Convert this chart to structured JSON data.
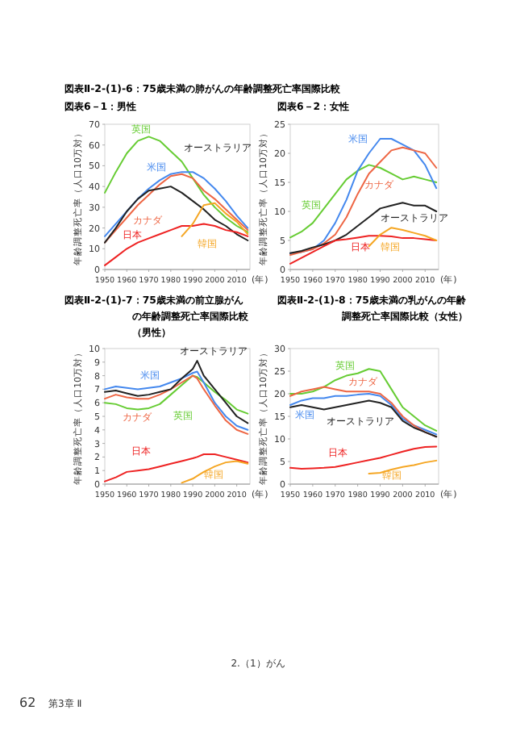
{
  "chart_data": [
    {
      "type": "line",
      "title": "図表Ⅱ-2-(1)-6：75歳未満の肺がんの年齢調整死亡率国際比較",
      "subtitle": "図表6－1：男性",
      "xlabel": "(年)",
      "ylabel": "年齢調整死亡率（人口10万対）",
      "xlim": [
        1950,
        2016
      ],
      "xticks": [
        1950,
        1960,
        1970,
        1980,
        1990,
        2000,
        2010
      ],
      "ylim": [
        0,
        70
      ],
      "yticks": [
        0,
        10,
        20,
        30,
        40,
        50,
        60,
        70
      ],
      "x": [
        1950,
        1955,
        1960,
        1965,
        1970,
        1975,
        1980,
        1985,
        1990,
        1995,
        2000,
        2005,
        2010,
        2015
      ],
      "series": [
        {
          "name": "英国",
          "color": "#66cc33",
          "values": [
            37,
            47,
            56,
            62,
            64,
            62,
            57,
            52,
            44,
            36,
            30,
            25,
            21,
            18
          ]
        },
        {
          "name": "米国",
          "color": "#4488ee",
          "values": [
            16,
            22,
            28,
            34,
            39,
            43,
            46,
            47,
            47,
            44,
            39,
            33,
            26,
            20
          ]
        },
        {
          "name": "カナダ",
          "color": "#ee6644",
          "values": [
            13,
            19,
            25,
            31,
            36,
            41,
            45,
            46,
            44,
            38,
            34,
            29,
            24,
            19
          ]
        },
        {
          "name": "オーストラリア",
          "color": "#222222",
          "values": [
            13,
            20,
            28,
            34,
            38,
            39,
            40,
            37,
            33,
            29,
            24,
            21,
            17,
            14
          ]
        },
        {
          "name": "日本",
          "color": "#ee2222",
          "values": [
            2,
            6,
            10,
            13,
            15,
            17,
            19,
            21,
            21,
            22,
            21,
            19,
            18,
            16
          ]
        },
        {
          "name": "韓国",
          "color": "#f5a623",
          "values": [
            null,
            null,
            null,
            null,
            null,
            null,
            null,
            16,
            22,
            31,
            32,
            27,
            23,
            17
          ]
        }
      ]
    },
    {
      "type": "line",
      "title": "図表6－2：女性",
      "xlabel": "(年)",
      "ylabel": "年齢調整死亡率（人口10万対）",
      "xlim": [
        1950,
        2016
      ],
      "xticks": [
        1950,
        1960,
        1970,
        1980,
        1990,
        2000,
        2010
      ],
      "ylim": [
        0,
        25
      ],
      "yticks": [
        0,
        5,
        10,
        15,
        20,
        25
      ],
      "x": [
        1950,
        1955,
        1960,
        1965,
        1970,
        1975,
        1980,
        1985,
        1990,
        1995,
        2000,
        2005,
        2010,
        2015
      ],
      "series": [
        {
          "name": "英国",
          "color": "#66cc33",
          "values": [
            5.5,
            6.5,
            8,
            10.5,
            13,
            15.5,
            17,
            18,
            17.5,
            16.5,
            15.5,
            16,
            15.5,
            15
          ]
        },
        {
          "name": "米国",
          "color": "#4488ee",
          "values": [
            2.8,
            3,
            3.5,
            5,
            8,
            12,
            17,
            20,
            22.5,
            22.5,
            21.5,
            20.5,
            18,
            14
          ]
        },
        {
          "name": "カナダ",
          "color": "#ee6644",
          "values": [
            2.5,
            3,
            3.5,
            4.5,
            6,
            9,
            13,
            16.5,
            18.5,
            20.5,
            21,
            20.5,
            20,
            17.5
          ]
        },
        {
          "name": "オーストラリア",
          "color": "#222222",
          "values": [
            2.8,
            3.2,
            3.8,
            4.3,
            5,
            6,
            7.5,
            9,
            10.5,
            11,
            11.5,
            11,
            11,
            10
          ]
        },
        {
          "name": "日本",
          "color": "#ee2222",
          "values": [
            1,
            2,
            3,
            4,
            5,
            5.2,
            5.5,
            5.8,
            5.8,
            5.7,
            5.4,
            5.4,
            5.2,
            5
          ]
        },
        {
          "name": "韓国",
          "color": "#f5a623",
          "values": [
            null,
            null,
            null,
            null,
            null,
            null,
            null,
            4,
            6,
            7.2,
            6.8,
            6.3,
            5.8,
            5
          ]
        }
      ]
    },
    {
      "type": "line",
      "title": "図表Ⅱ-2-(1)-7：75歳未満の前立腺がんの年齢調整死亡率国際比較（男性）",
      "xlabel": "(年)",
      "ylabel": "年齢調整死亡率（人口10万対）",
      "xlim": [
        1950,
        2016
      ],
      "xticks": [
        1950,
        1960,
        1970,
        1980,
        1990,
        2000,
        2010
      ],
      "ylim": [
        0,
        10
      ],
      "yticks": [
        0,
        1,
        2,
        3,
        4,
        5,
        6,
        7,
        8,
        9,
        10
      ],
      "x": [
        1950,
        1955,
        1960,
        1965,
        1970,
        1975,
        1980,
        1985,
        1990,
        1992,
        1995,
        2000,
        2005,
        2010,
        2015
      ],
      "series": [
        {
          "name": "英国",
          "color": "#66cc33",
          "values": [
            6,
            5.9,
            5.6,
            5.5,
            5.6,
            5.9,
            6.6,
            7.3,
            8,
            7.9,
            7.5,
            6.8,
            6.2,
            5.5,
            5.2
          ]
        },
        {
          "name": "米国",
          "color": "#4488ee",
          "values": [
            7,
            7.2,
            7.1,
            7,
            7.1,
            7.2,
            7.5,
            7.8,
            8.2,
            8.3,
            7.5,
            6,
            5,
            4.3,
            4
          ]
        },
        {
          "name": "カナダ",
          "color": "#ee6644",
          "values": [
            6.3,
            6.6,
            6.4,
            6.3,
            6.3,
            6.6,
            7,
            7.5,
            8,
            7.8,
            7,
            5.8,
            4.7,
            4,
            3.7
          ]
        },
        {
          "name": "オーストラリア",
          "color": "#222222",
          "values": [
            6.8,
            6.9,
            6.7,
            6.5,
            6.6,
            6.8,
            7,
            7.8,
            8.5,
            9.1,
            8,
            7,
            6,
            5,
            4.5
          ]
        },
        {
          "name": "日本",
          "color": "#ee2222",
          "values": [
            0.2,
            0.5,
            0.9,
            1,
            1.1,
            1.3,
            1.5,
            1.7,
            1.9,
            2,
            2.2,
            2.2,
            2,
            1.8,
            1.6
          ]
        },
        {
          "name": "韓国",
          "color": "#f5a623",
          "values": [
            null,
            null,
            null,
            null,
            null,
            null,
            null,
            0.1,
            0.4,
            0.6,
            0.9,
            1.3,
            1.6,
            1.7,
            1.5
          ]
        }
      ]
    },
    {
      "type": "line",
      "title": "図表Ⅱ-2-(1)-8：75歳未満の乳がんの年齢調整死亡率国際比較（女性）",
      "xlabel": "(年)",
      "ylabel": "年齢調整死亡率（人口10万対）",
      "xlim": [
        1950,
        2016
      ],
      "xticks": [
        1950,
        1960,
        1970,
        1980,
        1990,
        2000,
        2010
      ],
      "ylim": [
        0,
        30
      ],
      "yticks": [
        0,
        5,
        10,
        15,
        20,
        25,
        30
      ],
      "x": [
        1950,
        1955,
        1960,
        1965,
        1970,
        1975,
        1980,
        1985,
        1990,
        1995,
        2000,
        2005,
        2010,
        2015
      ],
      "series": [
        {
          "name": "英国",
          "color": "#66cc33",
          "values": [
            20,
            20,
            20.5,
            21.5,
            23,
            24,
            24.5,
            25.5,
            25,
            21,
            17,
            15,
            13,
            11.8
          ]
        },
        {
          "name": "米国",
          "color": "#4488ee",
          "values": [
            17.5,
            18.5,
            19,
            19,
            19.5,
            19.5,
            19.8,
            20,
            19.5,
            17.5,
            14.5,
            13,
            12,
            11
          ]
        },
        {
          "name": "カナダ",
          "color": "#ee6644",
          "values": [
            19.5,
            20.5,
            21,
            21.5,
            21,
            20.5,
            20.5,
            20.5,
            20,
            18,
            15,
            13,
            11.5,
            10.5
          ]
        },
        {
          "name": "オーストラリア",
          "color": "#222222",
          "values": [
            17,
            17.5,
            17,
            16.5,
            17,
            17.5,
            18,
            18.5,
            18,
            17,
            14,
            12.5,
            11.5,
            10.5
          ]
        },
        {
          "name": "日本",
          "color": "#ee2222",
          "values": [
            3.6,
            3.4,
            3.5,
            3.6,
            3.8,
            4.3,
            4.8,
            5.3,
            5.8,
            6.5,
            7.2,
            7.8,
            8.2,
            8.3
          ]
        },
        {
          "name": "韓国",
          "color": "#f5a623",
          "values": [
            null,
            null,
            null,
            null,
            null,
            null,
            null,
            2.3,
            2.5,
            3.2,
            3.8,
            4.2,
            4.8,
            5.2
          ]
        }
      ],
      "annotations": [
        "2.（1）がん",
        "62",
        "第3章 Ⅱ"
      ]
    }
  ]
}
